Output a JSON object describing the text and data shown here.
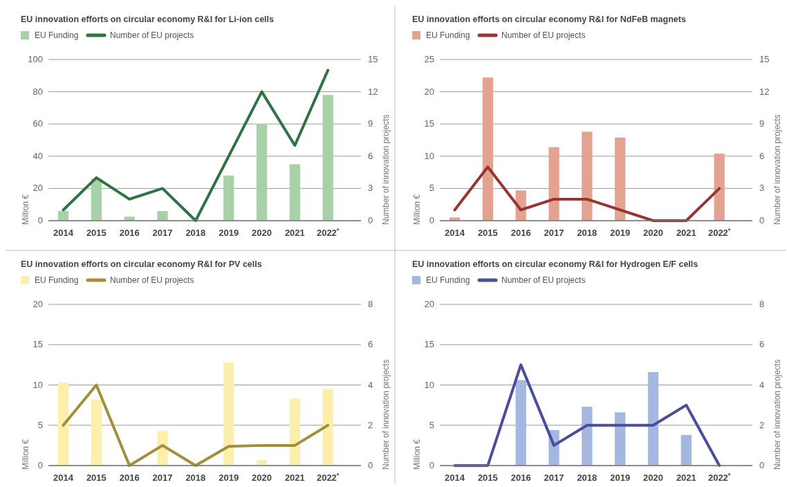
{
  "chart_data": [
    {
      "type": "bar",
      "title": "EU innovation efforts on circular economy R&I for Li-ion cells",
      "ylabel": "Million €",
      "y2label": "Number of innovation projects",
      "categories": [
        "2014",
        "2015",
        "2016",
        "2017",
        "2018",
        "2019",
        "2020",
        "2021",
        "2022$^{*}$"
      ],
      "ylim": [
        0,
        100
      ],
      "yticks": [
        0,
        20,
        40,
        60,
        80,
        100
      ],
      "y2lim": [
        0,
        15
      ],
      "y2ticks": [
        0,
        3,
        6,
        9,
        12,
        15
      ],
      "grid": "y",
      "legend": "top left",
      "series": [
        {
          "name": "EU Funding",
          "type": "bar",
          "color": "#a9d1a8",
          "values": [
            6,
            26,
            2.5,
            6,
            0,
            28,
            60,
            35,
            78
          ]
        },
        {
          "name": "Number of EU projects",
          "type": "line",
          "axis": "y2",
          "color": "#2e7342",
          "values": [
            1,
            4,
            2,
            3,
            0,
            6,
            12,
            7,
            14
          ]
        }
      ]
    },
    {
      "type": "bar",
      "title": "EU innovation efforts on circular economy R&I for NdFeB magnets",
      "ylabel": "Million €",
      "y2label": "Number of innovation projects",
      "categories": [
        "2014",
        "2015",
        "2016",
        "2017",
        "2018",
        "2019",
        "2020",
        "2021",
        "2022$^{*}$"
      ],
      "ylim": [
        0,
        25
      ],
      "yticks": [
        0,
        5,
        10,
        15,
        20,
        25
      ],
      "y2lim": [
        0,
        15
      ],
      "y2ticks": [
        0,
        3,
        6,
        9,
        12,
        15
      ],
      "grid": "y",
      "legend": "top left",
      "series": [
        {
          "name": "EU Funding",
          "type": "bar",
          "color": "#e4a391",
          "values": [
            0.5,
            22.2,
            4.7,
            11.4,
            13.8,
            12.9,
            0,
            0,
            10.4
          ]
        },
        {
          "name": "Number of EU projects",
          "type": "line",
          "axis": "y2",
          "color": "#973530",
          "values": [
            1,
            5,
            1,
            2,
            2,
            1,
            0,
            0,
            3
          ]
        }
      ]
    },
    {
      "type": "bar",
      "title": "EU innovation efforts on circular economy R&I for PV cells",
      "ylabel": "Million €",
      "y2label": "Number of innovation projects",
      "categories": [
        "2014",
        "2015",
        "2016",
        "2017",
        "2018",
        "2019",
        "2020",
        "2021",
        "2022$^{*}$"
      ],
      "ylim": [
        0,
        20
      ],
      "yticks": [
        0,
        5,
        10,
        15,
        20
      ],
      "y2lim": [
        0,
        8
      ],
      "y2ticks": [
        0,
        2,
        4,
        6,
        8
      ],
      "grid": "y",
      "legend": "top left",
      "series": [
        {
          "name": "EU Funding",
          "type": "bar",
          "color": "#fcefac",
          "values": [
            10.3,
            8.2,
            0,
            4.3,
            0,
            12.8,
            0.7,
            8.3,
            9.5
          ]
        },
        {
          "name": "Number of EU projects",
          "type": "line",
          "axis": "y2",
          "color": "#a38f36",
          "values": [
            2,
            4,
            0,
            1,
            0,
            0.95,
            1,
            1,
            2
          ]
        }
      ]
    },
    {
      "type": "bar",
      "title": "EU innovation efforts on circular economy R&I for Hydrogen E/F cells",
      "ylabel": "Million €",
      "y2label": "Number of innovation projects",
      "categories": [
        "2014",
        "2015",
        "2016",
        "2017",
        "2018",
        "2019",
        "2020",
        "2021",
        "2022$^{*}$"
      ],
      "ylim": [
        0,
        20
      ],
      "yticks": [
        0,
        5,
        10,
        15,
        20
      ],
      "y2lim": [
        0,
        8
      ],
      "y2ticks": [
        0,
        2,
        4,
        6,
        8
      ],
      "grid": "y",
      "legend": "top left",
      "series": [
        {
          "name": "EU Funding",
          "type": "bar",
          "color": "#a4b7e0",
          "values": [
            0,
            0,
            10.6,
            4.4,
            7.3,
            6.6,
            11.6,
            3.8,
            0
          ]
        },
        {
          "name": "Number of EU projects",
          "type": "line",
          "axis": "y2",
          "color": "#4a4c9c",
          "values": [
            0,
            0,
            5,
            1,
            2,
            2,
            2,
            3,
            0
          ]
        }
      ]
    }
  ]
}
